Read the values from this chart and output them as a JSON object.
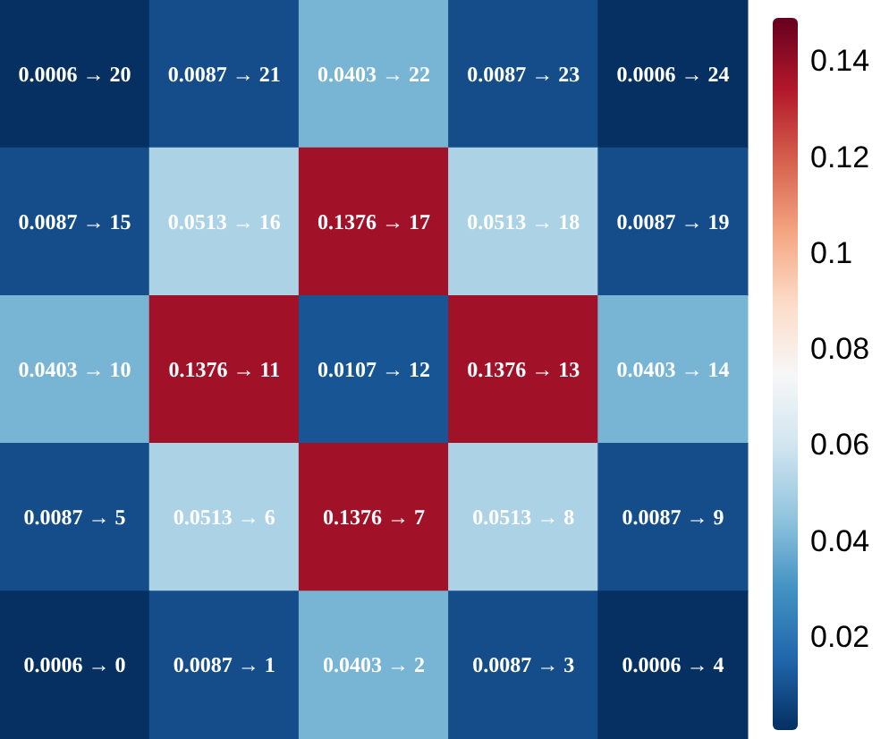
{
  "chart_data": {
    "type": "heatmap",
    "categories": [
      null,
      null,
      null,
      null,
      null
    ],
    "y_categories": [
      null,
      null,
      null,
      null,
      null
    ],
    "cells": [
      [
        0.0006,
        0.0087,
        0.0403,
        0.0087,
        0.0006
      ],
      [
        0.0087,
        0.0513,
        0.1376,
        0.0513,
        0.0087
      ],
      [
        0.0403,
        0.1376,
        0.0107,
        0.1376,
        0.0403
      ],
      [
        0.0087,
        0.0513,
        0.1376,
        0.0513,
        0.0087
      ],
      [
        0.0006,
        0.0087,
        0.0403,
        0.0087,
        0.0006
      ]
    ],
    "cell_labels": [
      [
        "0.0006 → 20",
        "0.0087 → 21",
        "0.0403 → 22",
        "0.0087 → 23",
        "0.0006 → 24"
      ],
      [
        "0.0087 → 15",
        "0.0513 → 16",
        "0.1376 → 17",
        "0.0513 → 18",
        "0.0087 → 19"
      ],
      [
        "0.0403 → 10",
        "0.1376 → 11",
        "0.0107 → 12",
        "0.1376 → 13",
        "0.0403 → 14"
      ],
      [
        "0.0087 → 5",
        "0.0513 → 6",
        "0.1376 → 7",
        "0.0513 → 8",
        "0.0087 → 9"
      ],
      [
        "0.0006 → 0",
        "0.0087 → 1",
        "0.0403 → 2",
        "0.0087 → 3",
        "0.0006 → 4"
      ]
    ],
    "clim": [
      0.0006,
      0.149
    ],
    "cticks": [
      0.02,
      0.04,
      0.06,
      {
        "value": 0.08,
        "label": "0.08"
      },
      {
        "value": 0.1,
        "label": "0.1"
      },
      0.12,
      0.14
    ]
  }
}
